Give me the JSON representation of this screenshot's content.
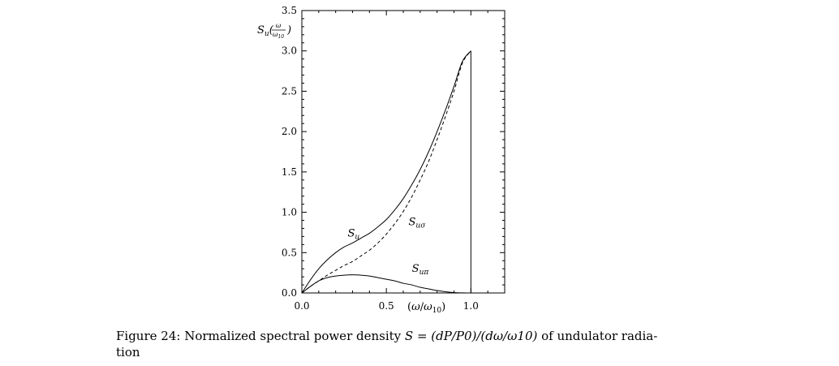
{
  "chart_data": {
    "type": "line",
    "title": "",
    "xlabel": "(ω/ω10)",
    "ylabel": "Su(ω/ω10)",
    "xlim": [
      0.0,
      1.2
    ],
    "ylim": [
      0.0,
      3.5
    ],
    "x_ticks": [
      "0.0",
      "0.5",
      "1.0"
    ],
    "x_tick_values": [
      0.0,
      0.5,
      1.0
    ],
    "y_ticks": [
      "0.0",
      "0.5",
      "1.0",
      "1.5",
      "2.0",
      "2.5",
      "3.0",
      "3.5"
    ],
    "y_tick_values": [
      0.0,
      0.5,
      1.0,
      1.5,
      2.0,
      2.5,
      3.0,
      3.5
    ],
    "grid": false,
    "series": [
      {
        "name": "Su",
        "style": "solid",
        "x": [
          0.0,
          0.05,
          0.1,
          0.15,
          0.2,
          0.25,
          0.3,
          0.35,
          0.4,
          0.45,
          0.5,
          0.55,
          0.6,
          0.65,
          0.7,
          0.75,
          0.8,
          0.85,
          0.9,
          0.95,
          1.0
        ],
        "y": [
          0.0,
          0.16,
          0.3,
          0.41,
          0.5,
          0.57,
          0.62,
          0.68,
          0.74,
          0.82,
          0.91,
          1.03,
          1.17,
          1.34,
          1.53,
          1.75,
          2.0,
          2.27,
          2.56,
          2.87,
          3.0
        ]
      },
      {
        "name": "Suσ",
        "style": "dashed",
        "x": [
          0.0,
          0.05,
          0.1,
          0.15,
          0.2,
          0.25,
          0.3,
          0.35,
          0.4,
          0.45,
          0.5,
          0.55,
          0.6,
          0.65,
          0.7,
          0.75,
          0.8,
          0.85,
          0.9,
          0.95,
          1.0
        ],
        "y": [
          0.0,
          0.08,
          0.15,
          0.22,
          0.28,
          0.34,
          0.39,
          0.46,
          0.53,
          0.62,
          0.73,
          0.86,
          1.01,
          1.19,
          1.4,
          1.63,
          1.9,
          2.19,
          2.5,
          2.85,
          3.0
        ]
      },
      {
        "name": "Suπ",
        "style": "solid",
        "x": [
          0.0,
          0.05,
          0.1,
          0.15,
          0.2,
          0.25,
          0.3,
          0.35,
          0.4,
          0.45,
          0.5,
          0.55,
          0.6,
          0.65,
          0.7,
          0.75,
          0.8,
          0.85,
          0.9,
          0.95,
          1.0
        ],
        "y": [
          0.0,
          0.08,
          0.15,
          0.19,
          0.21,
          0.22,
          0.225,
          0.22,
          0.21,
          0.19,
          0.17,
          0.15,
          0.12,
          0.1,
          0.07,
          0.05,
          0.03,
          0.015,
          0.005,
          0.001,
          0.0
        ]
      }
    ],
    "annotations": [
      {
        "label": "Su",
        "x": 0.3,
        "y": 0.62
      },
      {
        "label": "Suσ",
        "x": 0.66,
        "y": 0.76
      },
      {
        "label": "Suπ",
        "x": 0.68,
        "y": 0.18
      }
    ],
    "vertical_lines": [
      1.0
    ]
  },
  "caption": {
    "prefix": "Figure 24: Normalized spectral power density ",
    "math": "S = (dP/P0)/(dω/ω10)",
    "suffix": " of undulator radia-",
    "line2": "tion"
  }
}
